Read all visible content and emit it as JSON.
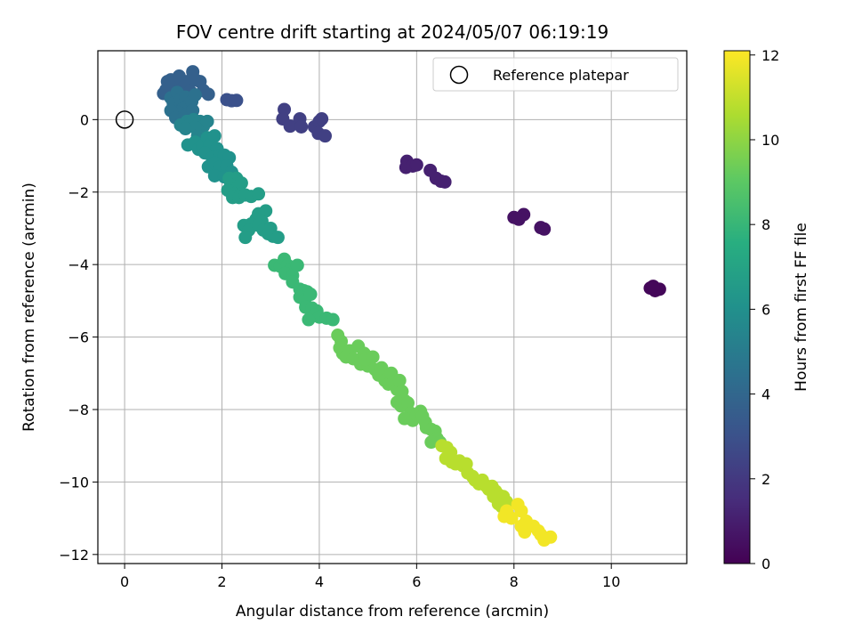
{
  "chart_data": {
    "type": "scatter",
    "title": "FOV centre drift starting at 2024/05/07 06:19:19",
    "xlabel": "Angular distance from reference (arcmin)",
    "ylabel": "Rotation from reference (arcmin)",
    "xlim": [
      -0.55,
      11.55
    ],
    "ylim": [
      -12.25,
      1.9
    ],
    "xticks": [
      0,
      2,
      4,
      6,
      8,
      10
    ],
    "yticks": [
      0,
      -2,
      -4,
      -6,
      -8,
      -10,
      -12
    ],
    "grid": true,
    "legend": {
      "position": "top-right",
      "entries": [
        "Reference platepar"
      ]
    },
    "reference_point": {
      "x": 0,
      "y": 0
    },
    "colorbar": {
      "label": "Hours from first FF file",
      "range": [
        0,
        12.1
      ],
      "ticks": [
        0,
        2,
        4,
        6,
        8,
        10,
        12
      ],
      "colormap": "viridis"
    },
    "clusters": [
      {
        "hours": 0.2,
        "points": [
          [
            10.8,
            -4.65
          ],
          [
            10.9,
            -4.72
          ],
          [
            10.99,
            -4.68
          ],
          [
            10.86,
            -4.6
          ]
        ]
      },
      {
        "hours": 0.6,
        "points": [
          [
            8.0,
            -2.7
          ],
          [
            8.2,
            -2.62
          ],
          [
            8.1,
            -2.75
          ],
          [
            8.55,
            -2.98
          ],
          [
            8.62,
            -3.02
          ]
        ]
      },
      {
        "hours": 1.1,
        "points": [
          [
            5.8,
            -1.15
          ],
          [
            5.78,
            -1.32
          ],
          [
            5.92,
            -1.28
          ],
          [
            6.0,
            -1.25
          ],
          [
            6.28,
            -1.4
          ],
          [
            6.4,
            -1.62
          ],
          [
            6.5,
            -1.7
          ],
          [
            6.58,
            -1.72
          ]
        ]
      },
      {
        "hours": 2.3,
        "points": [
          [
            3.28,
            0.28
          ],
          [
            3.25,
            0.02
          ],
          [
            3.4,
            -0.18
          ],
          [
            3.6,
            0.02
          ],
          [
            3.63,
            -0.2
          ],
          [
            3.9,
            -0.2
          ],
          [
            4.0,
            -0.05
          ],
          [
            4.05,
            0.02
          ],
          [
            3.98,
            -0.38
          ],
          [
            4.12,
            -0.45
          ]
        ]
      },
      {
        "hours": 3.0,
        "points": [
          [
            2.1,
            0.55
          ],
          [
            2.2,
            0.52
          ],
          [
            2.3,
            0.53
          ]
        ]
      },
      {
        "hours": 3.7,
        "points": [
          [
            0.88,
            1.05
          ],
          [
            0.95,
            1.1
          ],
          [
            0.8,
            0.72
          ],
          [
            0.85,
            0.82
          ],
          [
            1.05,
            0.95
          ],
          [
            1.12,
            1.2
          ],
          [
            1.22,
            0.9
          ],
          [
            1.28,
            1.05
          ],
          [
            1.4,
            1.32
          ],
          [
            1.45,
            1.1
          ],
          [
            1.55,
            1.05
          ],
          [
            1.62,
            0.8
          ],
          [
            1.72,
            0.7
          ],
          [
            1.35,
            0.78
          ]
        ]
      },
      {
        "hours": 4.5,
        "points": [
          [
            0.95,
            0.6
          ],
          [
            1.0,
            0.45
          ],
          [
            1.08,
            0.75
          ],
          [
            1.15,
            0.55
          ],
          [
            1.25,
            0.62
          ],
          [
            1.3,
            0.38
          ],
          [
            1.2,
            0.3
          ],
          [
            1.1,
            0.2
          ],
          [
            0.95,
            0.25
          ],
          [
            1.38,
            0.5
          ],
          [
            1.45,
            0.68
          ],
          [
            1.05,
            0.05
          ],
          [
            1.18,
            0.0
          ],
          [
            1.3,
            0.15
          ],
          [
            1.4,
            0.25
          ]
        ]
      },
      {
        "hours": 5.4,
        "points": [
          [
            1.15,
            -0.15
          ],
          [
            1.28,
            -0.05
          ],
          [
            1.35,
            -0.12
          ],
          [
            1.42,
            0.0
          ],
          [
            1.55,
            -0.05
          ],
          [
            1.62,
            -0.18
          ],
          [
            1.7,
            -0.05
          ],
          [
            1.45,
            -0.22
          ],
          [
            1.5,
            -0.45
          ],
          [
            1.6,
            -0.55
          ],
          [
            1.25,
            -0.25
          ]
        ]
      },
      {
        "hours": 6.1,
        "points": [
          [
            1.3,
            -0.7
          ],
          [
            1.45,
            -0.62
          ],
          [
            1.52,
            -0.82
          ],
          [
            1.6,
            -0.72
          ],
          [
            1.7,
            -0.5
          ],
          [
            1.75,
            -0.7
          ],
          [
            1.85,
            -0.45
          ],
          [
            1.9,
            -0.8
          ],
          [
            1.65,
            -0.92
          ],
          [
            1.8,
            -1.05
          ],
          [
            1.95,
            -1.0
          ],
          [
            2.05,
            -0.98
          ],
          [
            2.15,
            -1.05
          ],
          [
            1.72,
            -1.3
          ],
          [
            1.85,
            -1.2
          ],
          [
            1.95,
            -1.32
          ],
          [
            2.1,
            -1.28
          ],
          [
            2.2,
            -1.45
          ],
          [
            1.85,
            -1.55
          ],
          [
            2.05,
            -1.58
          ]
        ]
      },
      {
        "hours": 6.7,
        "points": [
          [
            2.15,
            -1.62
          ],
          [
            2.3,
            -1.62
          ],
          [
            2.18,
            -1.8
          ],
          [
            2.3,
            -1.9
          ],
          [
            2.4,
            -1.75
          ],
          [
            2.12,
            -1.95
          ],
          [
            2.25,
            -2.05
          ],
          [
            2.4,
            -2.05
          ],
          [
            2.22,
            -2.15
          ],
          [
            2.35,
            -2.15
          ],
          [
            2.48,
            -2.08
          ],
          [
            2.6,
            -2.12
          ],
          [
            2.75,
            -2.05
          ],
          [
            2.9,
            -2.52
          ],
          [
            2.75,
            -2.6
          ],
          [
            2.7,
            -2.75
          ],
          [
            2.82,
            -2.8
          ],
          [
            2.6,
            -2.88
          ],
          [
            2.45,
            -2.92
          ],
          [
            2.55,
            -3.05
          ],
          [
            2.48,
            -3.25
          ],
          [
            2.75,
            -2.92
          ],
          [
            2.85,
            -3.05
          ],
          [
            3.0,
            -3.0
          ],
          [
            3.05,
            -3.22
          ],
          [
            2.95,
            -3.15
          ],
          [
            3.15,
            -3.25
          ]
        ]
      },
      {
        "hours": 8.1,
        "points": [
          [
            3.08,
            -4.02
          ],
          [
            3.2,
            -4.05
          ],
          [
            3.28,
            -3.85
          ],
          [
            3.35,
            -4.02
          ],
          [
            3.4,
            -4.15
          ],
          [
            3.3,
            -4.25
          ],
          [
            3.45,
            -4.3
          ],
          [
            3.55,
            -4.02
          ],
          [
            3.45,
            -4.48
          ],
          [
            3.6,
            -4.68
          ],
          [
            3.68,
            -4.72
          ],
          [
            3.75,
            -4.75
          ],
          [
            3.6,
            -4.9
          ],
          [
            3.7,
            -4.98
          ],
          [
            3.82,
            -4.82
          ],
          [
            3.72,
            -5.18
          ],
          [
            3.85,
            -5.2
          ],
          [
            3.95,
            -5.28
          ],
          [
            3.9,
            -5.4
          ],
          [
            4.0,
            -5.45
          ],
          [
            3.78,
            -5.52
          ],
          [
            4.15,
            -5.48
          ],
          [
            4.28,
            -5.52
          ]
        ]
      },
      {
        "hours": 9.3,
        "points": [
          [
            4.38,
            -5.95
          ],
          [
            4.45,
            -6.12
          ],
          [
            4.42,
            -6.3
          ],
          [
            4.48,
            -6.45
          ],
          [
            4.55,
            -6.55
          ],
          [
            4.62,
            -6.38
          ],
          [
            4.7,
            -6.6
          ],
          [
            4.8,
            -6.25
          ],
          [
            4.92,
            -6.45
          ],
          [
            4.85,
            -6.75
          ],
          [
            5.0,
            -6.8
          ],
          [
            4.95,
            -6.62
          ],
          [
            5.1,
            -6.55
          ],
          [
            5.15,
            -6.9
          ],
          [
            5.22,
            -7.05
          ],
          [
            5.28,
            -6.85
          ],
          [
            5.35,
            -7.2
          ],
          [
            5.42,
            -7.3
          ],
          [
            5.48,
            -7.0
          ],
          [
            5.52,
            -7.25
          ],
          [
            5.6,
            -7.45
          ],
          [
            5.65,
            -7.2
          ],
          [
            5.7,
            -7.5
          ],
          [
            5.75,
            -7.75
          ],
          [
            5.6,
            -7.8
          ],
          [
            5.68,
            -7.9
          ],
          [
            5.82,
            -7.82
          ],
          [
            5.88,
            -8.1
          ],
          [
            5.75,
            -8.25
          ],
          [
            5.92,
            -8.3
          ],
          [
            6.0,
            -8.15
          ],
          [
            6.08,
            -8.05
          ],
          [
            6.12,
            -8.18
          ],
          [
            6.18,
            -8.35
          ],
          [
            6.2,
            -8.5
          ],
          [
            6.3,
            -8.55
          ],
          [
            6.38,
            -8.6
          ],
          [
            6.42,
            -8.8
          ],
          [
            6.3,
            -8.9
          ],
          [
            6.48,
            -8.9
          ]
        ]
      },
      {
        "hours": 10.8,
        "points": [
          [
            6.52,
            -9.0
          ],
          [
            6.62,
            -9.05
          ],
          [
            6.7,
            -9.18
          ],
          [
            6.6,
            -9.35
          ],
          [
            6.72,
            -9.45
          ],
          [
            6.8,
            -9.5
          ],
          [
            6.88,
            -9.42
          ],
          [
            6.95,
            -9.55
          ],
          [
            7.02,
            -9.5
          ],
          [
            7.05,
            -9.75
          ],
          [
            7.15,
            -9.85
          ],
          [
            7.2,
            -9.95
          ],
          [
            7.28,
            -10.05
          ],
          [
            7.35,
            -9.95
          ],
          [
            7.42,
            -10.1
          ],
          [
            7.48,
            -10.2
          ],
          [
            7.55,
            -10.12
          ],
          [
            7.62,
            -10.25
          ],
          [
            7.68,
            -10.35
          ],
          [
            7.72,
            -10.48
          ],
          [
            7.78,
            -10.4
          ],
          [
            7.85,
            -10.55
          ],
          [
            7.58,
            -10.4
          ],
          [
            7.68,
            -10.6
          ],
          [
            7.75,
            -10.68
          ]
        ]
      },
      {
        "hours": 11.9,
        "points": [
          [
            7.85,
            -10.8
          ],
          [
            7.8,
            -10.95
          ],
          [
            7.95,
            -11.0
          ],
          [
            8.08,
            -10.62
          ],
          [
            8.15,
            -10.8
          ],
          [
            8.25,
            -11.08
          ],
          [
            8.15,
            -11.22
          ],
          [
            8.22,
            -11.38
          ],
          [
            8.4,
            -11.22
          ],
          [
            8.5,
            -11.35
          ],
          [
            8.55,
            -11.45
          ],
          [
            8.62,
            -11.6
          ],
          [
            8.75,
            -11.52
          ]
        ]
      }
    ]
  }
}
